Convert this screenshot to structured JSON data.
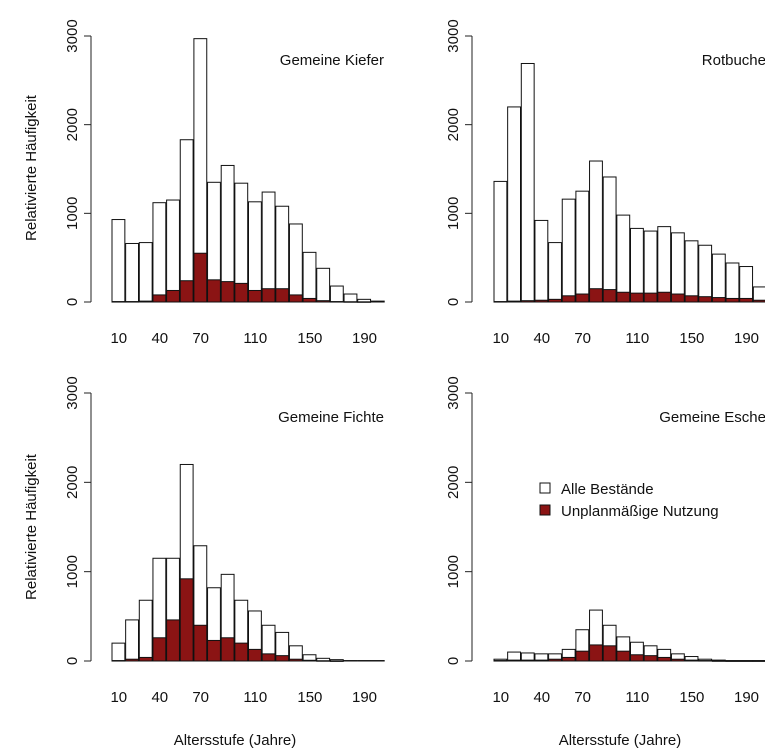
{
  "colors": {
    "all": "#ffffff",
    "unplanned": "#8b1414"
  },
  "legend": {
    "items": [
      {
        "label": "Alle Bestände",
        "color": "#ffffff"
      },
      {
        "label": "Unplanmäßige Nutzung",
        "color": "#8b1414"
      }
    ]
  },
  "x_axis_label": "Altersstufe (Jahre)",
  "y_axis_label": "Relativierte Häufigkeit",
  "chart_data": [
    {
      "type": "bar",
      "title": "Gemeine Kiefer",
      "ylim": [
        0,
        3000
      ],
      "yticks": [
        0,
        1000,
        2000,
        3000
      ],
      "xticks": [
        "10",
        "40",
        "70",
        "110",
        "150",
        "190"
      ],
      "x": [
        10,
        20,
        30,
        40,
        50,
        60,
        70,
        80,
        90,
        100,
        110,
        120,
        130,
        140,
        150,
        160,
        170,
        180,
        190,
        200
      ],
      "series": [
        {
          "name": "Alle Bestände",
          "values": [
            930,
            660,
            670,
            1120,
            1150,
            1830,
            2970,
            1350,
            1540,
            1340,
            1130,
            1240,
            1080,
            880,
            560,
            380,
            180,
            90,
            30,
            10
          ]
        },
        {
          "name": "Unplanmäßige Nutzung",
          "values": [
            5,
            5,
            10,
            80,
            130,
            240,
            550,
            250,
            230,
            210,
            130,
            150,
            150,
            80,
            40,
            15,
            5,
            3,
            2,
            0
          ]
        }
      ]
    },
    {
      "type": "bar",
      "title": "Rotbuche",
      "ylim": [
        0,
        3000
      ],
      "yticks": [
        0,
        1000,
        2000,
        3000
      ],
      "xticks": [
        "10",
        "40",
        "70",
        "110",
        "150",
        "190"
      ],
      "x": [
        10,
        20,
        30,
        40,
        50,
        60,
        70,
        80,
        90,
        100,
        110,
        120,
        130,
        140,
        150,
        160,
        170,
        180,
        190,
        200
      ],
      "series": [
        {
          "name": "Alle Bestände",
          "values": [
            1360,
            2200,
            2690,
            920,
            670,
            1160,
            1250,
            1590,
            1410,
            980,
            830,
            800,
            850,
            780,
            690,
            640,
            540,
            440,
            400,
            170
          ]
        },
        {
          "name": "Unplanmäßige Nutzung",
          "values": [
            5,
            10,
            15,
            20,
            30,
            70,
            90,
            150,
            140,
            110,
            100,
            100,
            110,
            90,
            70,
            60,
            50,
            40,
            40,
            20
          ]
        }
      ]
    },
    {
      "type": "bar",
      "title": "Gemeine Fichte",
      "ylim": [
        0,
        3000
      ],
      "yticks": [
        0,
        1000,
        2000,
        3000
      ],
      "xticks": [
        "10",
        "40",
        "70",
        "110",
        "150",
        "190"
      ],
      "x": [
        10,
        20,
        30,
        40,
        50,
        60,
        70,
        80,
        90,
        100,
        110,
        120,
        130,
        140,
        150,
        160,
        170,
        180,
        190,
        200
      ],
      "series": [
        {
          "name": "Alle Bestände",
          "values": [
            200,
            460,
            680,
            1150,
            1150,
            2200,
            1290,
            820,
            970,
            680,
            560,
            400,
            320,
            170,
            70,
            30,
            15,
            5,
            5,
            5
          ]
        },
        {
          "name": "Unplanmäßige Nutzung",
          "values": [
            5,
            20,
            40,
            260,
            460,
            920,
            400,
            230,
            260,
            200,
            130,
            80,
            60,
            20,
            8,
            3,
            1,
            0,
            0,
            0
          ]
        }
      ]
    },
    {
      "type": "bar",
      "title": "Gemeine Esche",
      "ylim": [
        0,
        3000
      ],
      "yticks": [
        0,
        1000,
        2000,
        3000
      ],
      "xticks": [
        "10",
        "40",
        "70",
        "110",
        "150",
        "190"
      ],
      "x": [
        10,
        20,
        30,
        40,
        50,
        60,
        70,
        80,
        90,
        100,
        110,
        120,
        130,
        140,
        150,
        160,
        170,
        180,
        190,
        200
      ],
      "series": [
        {
          "name": "Alle Bestände",
          "values": [
            20,
            100,
            90,
            80,
            80,
            130,
            350,
            570,
            400,
            270,
            210,
            170,
            130,
            80,
            50,
            20,
            10,
            5,
            5,
            5
          ]
        },
        {
          "name": "Unplanmäßige Nutzung",
          "values": [
            5,
            10,
            10,
            10,
            20,
            40,
            110,
            180,
            170,
            110,
            70,
            60,
            40,
            20,
            10,
            5,
            2,
            1,
            1,
            1
          ]
        }
      ]
    }
  ]
}
